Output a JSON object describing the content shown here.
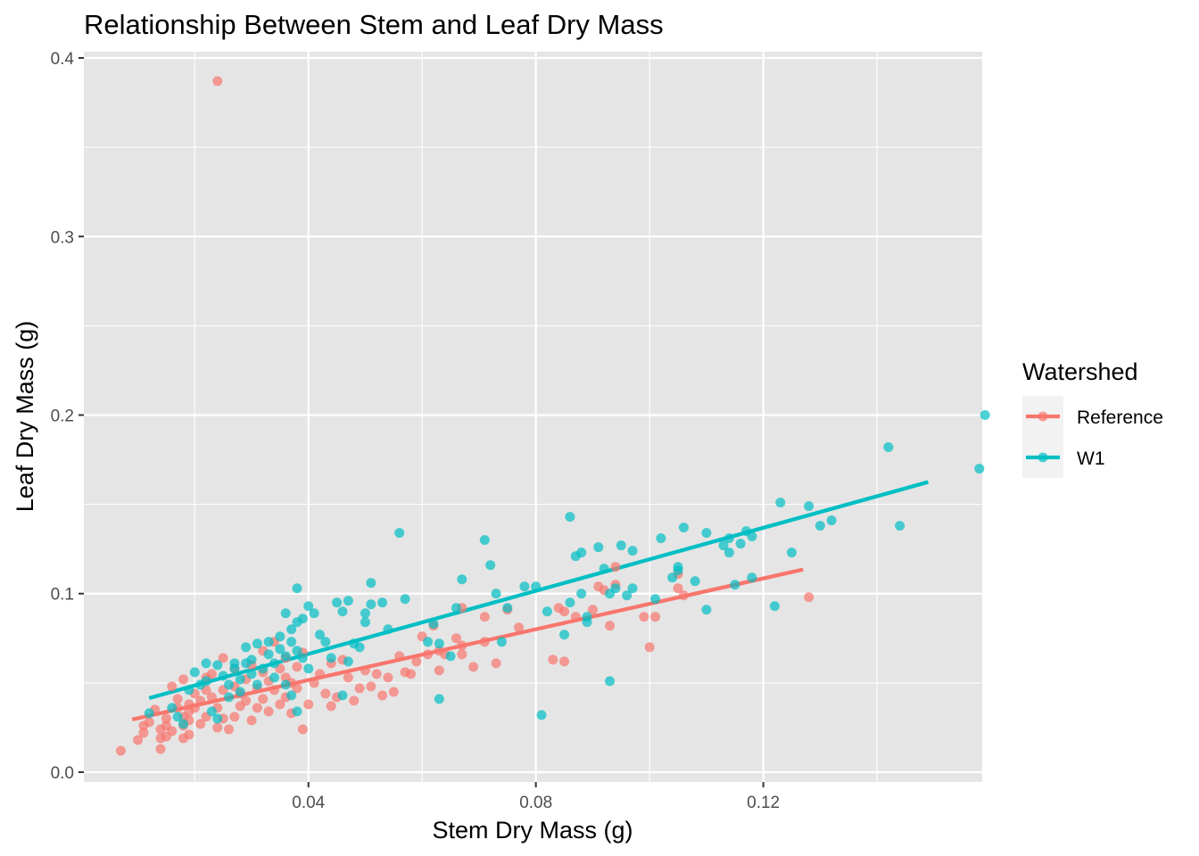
{
  "chart_data": {
    "type": "scatter",
    "title": "Relationship Between Stem and Leaf Dry Mass",
    "xlabel": "Stem Dry Mass (g)",
    "ylabel": "Leaf Dry Mass (g)",
    "xlim": [
      0.0005,
      0.1585
    ],
    "ylim": [
      -0.0055,
      0.4035
    ],
    "x_ticks": [
      0.04,
      0.08,
      0.12
    ],
    "x_tick_labels": [
      "0.04",
      "0.08",
      "0.12"
    ],
    "y_ticks": [
      0.0,
      0.1,
      0.2,
      0.3,
      0.4
    ],
    "y_tick_labels": [
      "0.0",
      "0.1",
      "0.2",
      "0.3",
      "0.4"
    ],
    "grid": true,
    "legend": {
      "title": "Watershed",
      "position": "right"
    },
    "series": [
      {
        "name": "Reference",
        "color": "#f8766d",
        "points": [
          [
            0.007,
            0.012
          ],
          [
            0.01,
            0.018
          ],
          [
            0.011,
            0.022
          ],
          [
            0.011,
            0.026
          ],
          [
            0.012,
            0.028
          ],
          [
            0.013,
            0.035
          ],
          [
            0.014,
            0.013
          ],
          [
            0.014,
            0.019
          ],
          [
            0.014,
            0.024
          ],
          [
            0.015,
            0.02
          ],
          [
            0.015,
            0.026
          ],
          [
            0.015,
            0.03
          ],
          [
            0.016,
            0.023
          ],
          [
            0.016,
            0.048
          ],
          [
            0.017,
            0.036
          ],
          [
            0.017,
            0.041
          ],
          [
            0.018,
            0.019
          ],
          [
            0.018,
            0.026
          ],
          [
            0.018,
            0.031
          ],
          [
            0.018,
            0.052
          ],
          [
            0.019,
            0.021
          ],
          [
            0.019,
            0.029
          ],
          [
            0.019,
            0.034
          ],
          [
            0.019,
            0.038
          ],
          [
            0.02,
            0.036
          ],
          [
            0.02,
            0.044
          ],
          [
            0.021,
            0.027
          ],
          [
            0.021,
            0.04
          ],
          [
            0.022,
            0.031
          ],
          [
            0.022,
            0.046
          ],
          [
            0.022,
            0.053
          ],
          [
            0.023,
            0.042
          ],
          [
            0.023,
            0.055
          ],
          [
            0.024,
            0.036
          ],
          [
            0.024,
            0.025
          ],
          [
            0.024,
            0.387
          ],
          [
            0.025,
            0.046
          ],
          [
            0.025,
            0.03
          ],
          [
            0.025,
            0.064
          ],
          [
            0.026,
            0.024
          ],
          [
            0.027,
            0.048
          ],
          [
            0.027,
            0.058
          ],
          [
            0.027,
            0.031
          ],
          [
            0.028,
            0.037
          ],
          [
            0.028,
            0.044
          ],
          [
            0.029,
            0.04
          ],
          [
            0.029,
            0.052
          ],
          [
            0.03,
            0.029
          ],
          [
            0.03,
            0.06
          ],
          [
            0.031,
            0.047
          ],
          [
            0.031,
            0.036
          ],
          [
            0.032,
            0.041
          ],
          [
            0.032,
            0.056
          ],
          [
            0.032,
            0.068
          ],
          [
            0.033,
            0.034
          ],
          [
            0.033,
            0.051
          ],
          [
            0.034,
            0.046
          ],
          [
            0.034,
            0.073
          ],
          [
            0.035,
            0.038
          ],
          [
            0.035,
            0.058
          ],
          [
            0.036,
            0.042
          ],
          [
            0.036,
            0.053
          ],
          [
            0.036,
            0.064
          ],
          [
            0.037,
            0.033
          ],
          [
            0.037,
            0.05
          ],
          [
            0.038,
            0.047
          ],
          [
            0.038,
            0.059
          ],
          [
            0.039,
            0.024
          ],
          [
            0.039,
            0.067
          ],
          [
            0.04,
            0.038
          ],
          [
            0.041,
            0.05
          ],
          [
            0.042,
            0.055
          ],
          [
            0.043,
            0.044
          ],
          [
            0.044,
            0.037
          ],
          [
            0.044,
            0.061
          ],
          [
            0.045,
            0.042
          ],
          [
            0.046,
            0.063
          ],
          [
            0.047,
            0.053
          ],
          [
            0.048,
            0.04
          ],
          [
            0.049,
            0.047
          ],
          [
            0.05,
            0.057
          ],
          [
            0.051,
            0.048
          ],
          [
            0.052,
            0.055
          ],
          [
            0.053,
            0.043
          ],
          [
            0.054,
            0.053
          ],
          [
            0.055,
            0.045
          ],
          [
            0.056,
            0.065
          ],
          [
            0.057,
            0.056
          ],
          [
            0.058,
            0.055
          ],
          [
            0.059,
            0.062
          ],
          [
            0.06,
            0.076
          ],
          [
            0.061,
            0.066
          ],
          [
            0.062,
            0.082
          ],
          [
            0.063,
            0.057
          ],
          [
            0.063,
            0.068
          ],
          [
            0.064,
            0.066
          ],
          [
            0.066,
            0.075
          ],
          [
            0.067,
            0.071
          ],
          [
            0.067,
            0.066
          ],
          [
            0.067,
            0.092
          ],
          [
            0.069,
            0.059
          ],
          [
            0.071,
            0.087
          ],
          [
            0.071,
            0.073
          ],
          [
            0.073,
            0.061
          ],
          [
            0.075,
            0.091
          ],
          [
            0.077,
            0.081
          ],
          [
            0.083,
            0.063
          ],
          [
            0.084,
            0.092
          ],
          [
            0.085,
            0.062
          ],
          [
            0.085,
            0.09
          ],
          [
            0.087,
            0.087
          ],
          [
            0.09,
            0.091
          ],
          [
            0.091,
            0.104
          ],
          [
            0.092,
            0.102
          ],
          [
            0.093,
            0.082
          ],
          [
            0.094,
            0.105
          ],
          [
            0.094,
            0.115
          ],
          [
            0.099,
            0.087
          ],
          [
            0.1,
            0.07
          ],
          [
            0.101,
            0.087
          ],
          [
            0.105,
            0.103
          ],
          [
            0.105,
            0.111
          ],
          [
            0.106,
            0.099
          ],
          [
            0.128,
            0.098
          ]
        ],
        "trend": [
          [
            0.009,
            0.0295
          ],
          [
            0.127,
            0.1135
          ]
        ]
      },
      {
        "name": "W1",
        "color": "#00bfc4",
        "points": [
          [
            0.012,
            0.033
          ],
          [
            0.016,
            0.036
          ],
          [
            0.017,
            0.031
          ],
          [
            0.018,
            0.027
          ],
          [
            0.019,
            0.046
          ],
          [
            0.02,
            0.056
          ],
          [
            0.021,
            0.049
          ],
          [
            0.022,
            0.061
          ],
          [
            0.022,
            0.051
          ],
          [
            0.023,
            0.034
          ],
          [
            0.024,
            0.06
          ],
          [
            0.024,
            0.03
          ],
          [
            0.025,
            0.054
          ],
          [
            0.026,
            0.042
          ],
          [
            0.026,
            0.049
          ],
          [
            0.027,
            0.058
          ],
          [
            0.027,
            0.061
          ],
          [
            0.028,
            0.052
          ],
          [
            0.028,
            0.045
          ],
          [
            0.029,
            0.061
          ],
          [
            0.029,
            0.07
          ],
          [
            0.03,
            0.055
          ],
          [
            0.03,
            0.063
          ],
          [
            0.031,
            0.072
          ],
          [
            0.031,
            0.049
          ],
          [
            0.032,
            0.058
          ],
          [
            0.033,
            0.066
          ],
          [
            0.033,
            0.073
          ],
          [
            0.034,
            0.061
          ],
          [
            0.034,
            0.053
          ],
          [
            0.035,
            0.069
          ],
          [
            0.035,
            0.076
          ],
          [
            0.036,
            0.089
          ],
          [
            0.036,
            0.065
          ],
          [
            0.036,
            0.049
          ],
          [
            0.037,
            0.073
          ],
          [
            0.037,
            0.08
          ],
          [
            0.037,
            0.043
          ],
          [
            0.038,
            0.084
          ],
          [
            0.038,
            0.068
          ],
          [
            0.038,
            0.103
          ],
          [
            0.038,
            0.034
          ],
          [
            0.039,
            0.064
          ],
          [
            0.039,
            0.086
          ],
          [
            0.04,
            0.093
          ],
          [
            0.04,
            0.058
          ],
          [
            0.041,
            0.089
          ],
          [
            0.042,
            0.077
          ],
          [
            0.043,
            0.073
          ],
          [
            0.044,
            0.064
          ],
          [
            0.045,
            0.095
          ],
          [
            0.046,
            0.09
          ],
          [
            0.046,
            0.043
          ],
          [
            0.047,
            0.096
          ],
          [
            0.047,
            0.062
          ],
          [
            0.048,
            0.072
          ],
          [
            0.049,
            0.07
          ],
          [
            0.05,
            0.089
          ],
          [
            0.05,
            0.084
          ],
          [
            0.051,
            0.094
          ],
          [
            0.051,
            0.106
          ],
          [
            0.053,
            0.095
          ],
          [
            0.054,
            0.08
          ],
          [
            0.056,
            0.134
          ],
          [
            0.057,
            0.097
          ],
          [
            0.061,
            0.073
          ],
          [
            0.062,
            0.083
          ],
          [
            0.063,
            0.072
          ],
          [
            0.063,
            0.041
          ],
          [
            0.065,
            0.065
          ],
          [
            0.066,
            0.092
          ],
          [
            0.067,
            0.108
          ],
          [
            0.071,
            0.13
          ],
          [
            0.072,
            0.116
          ],
          [
            0.073,
            0.1
          ],
          [
            0.074,
            0.073
          ],
          [
            0.075,
            0.092
          ],
          [
            0.078,
            0.104
          ],
          [
            0.08,
            0.104
          ],
          [
            0.081,
            0.032
          ],
          [
            0.082,
            0.09
          ],
          [
            0.085,
            0.077
          ],
          [
            0.086,
            0.095
          ],
          [
            0.086,
            0.143
          ],
          [
            0.087,
            0.121
          ],
          [
            0.088,
            0.123
          ],
          [
            0.088,
            0.1
          ],
          [
            0.089,
            0.084
          ],
          [
            0.089,
            0.087
          ],
          [
            0.091,
            0.126
          ],
          [
            0.092,
            0.114
          ],
          [
            0.093,
            0.1
          ],
          [
            0.093,
            0.051
          ],
          [
            0.094,
            0.103
          ],
          [
            0.095,
            0.127
          ],
          [
            0.096,
            0.099
          ],
          [
            0.097,
            0.124
          ],
          [
            0.097,
            0.103
          ],
          [
            0.101,
            0.097
          ],
          [
            0.102,
            0.131
          ],
          [
            0.104,
            0.109
          ],
          [
            0.105,
            0.113
          ],
          [
            0.105,
            0.115
          ],
          [
            0.106,
            0.137
          ],
          [
            0.108,
            0.107
          ],
          [
            0.11,
            0.134
          ],
          [
            0.11,
            0.091
          ],
          [
            0.113,
            0.127
          ],
          [
            0.114,
            0.123
          ],
          [
            0.114,
            0.131
          ],
          [
            0.115,
            0.105
          ],
          [
            0.116,
            0.128
          ],
          [
            0.117,
            0.135
          ],
          [
            0.118,
            0.109
          ],
          [
            0.118,
            0.132
          ],
          [
            0.122,
            0.093
          ],
          [
            0.123,
            0.151
          ],
          [
            0.125,
            0.123
          ],
          [
            0.128,
            0.149
          ],
          [
            0.13,
            0.138
          ],
          [
            0.132,
            0.141
          ],
          [
            0.142,
            0.182
          ],
          [
            0.144,
            0.138
          ],
          [
            0.158,
            0.17
          ],
          [
            0.159,
            0.2
          ]
        ],
        "trend": [
          [
            0.012,
            0.0415
          ],
          [
            0.149,
            0.1625
          ]
        ]
      }
    ]
  }
}
